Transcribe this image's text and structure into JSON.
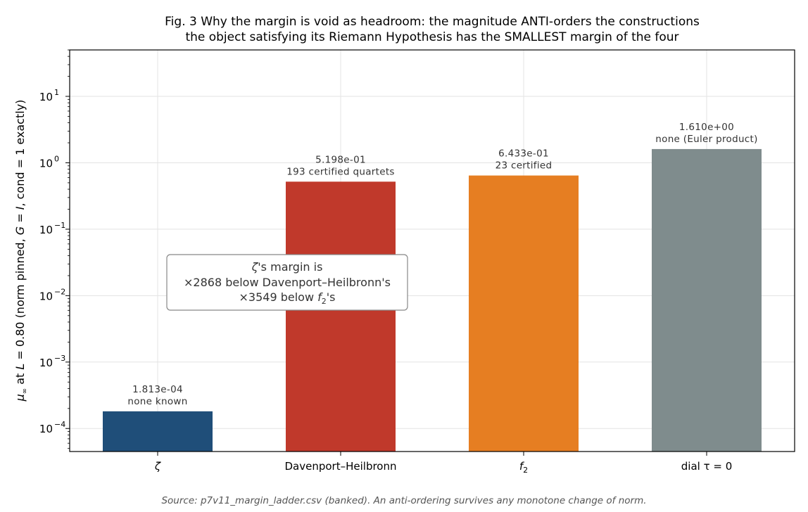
{
  "chart_data": {
    "type": "bar",
    "title_lines": [
      "Fig. 3  Why the margin is void as headroom: the magnitude ANTI-orders the constructions",
      "the object satisfying its Riemann Hypothesis has the SMALLEST margin of the four"
    ],
    "ylabel": "μ∞ at L = 0.80   (norm pinned, G = I, cond = 1 exactly)",
    "yscale": "log",
    "ylim": [
      4.5e-05,
      50
    ],
    "ytick_labels": [
      {
        "value": 0.0001,
        "base": "10",
        "exp": "−4"
      },
      {
        "value": 0.001,
        "base": "10",
        "exp": "−3"
      },
      {
        "value": 0.01,
        "base": "10",
        "exp": "−2"
      },
      {
        "value": 0.1,
        "base": "10",
        "exp": "−1"
      },
      {
        "value": 1,
        "base": "10",
        "exp": "0"
      },
      {
        "value": 10,
        "base": "10",
        "exp": "1"
      }
    ],
    "categories": [
      "ζ",
      "Davenport–Heilbronn",
      "f2",
      "dial τ = 0"
    ],
    "category_labels": [
      {
        "main": "ζ",
        "sub": ""
      },
      {
        "main": "Davenport–Heilbronn",
        "sub": ""
      },
      {
        "main": "f",
        "sub": "2"
      },
      {
        "main": "dial τ = 0",
        "sub": ""
      }
    ],
    "values": [
      0.0001813,
      0.5198,
      0.6433,
      1.61
    ],
    "bar_value_labels": [
      "1.813e-04",
      "5.198e-01",
      "6.433e-01",
      "1.610e+00"
    ],
    "bar_sub_labels": [
      "none known",
      "193 certified quartets",
      "23 certified",
      "none (Euler product)"
    ],
    "colors": [
      "#1f4e79",
      "#c0392b",
      "#e67e22",
      "#7f8c8d"
    ],
    "grid": true,
    "annotation": {
      "line1": "ζ's margin is",
      "line2": "×2868 below Davenport–Heilbronn's",
      "line3_prefix": "×3549 below ",
      "line3_f": "f",
      "line3_sub": "2",
      "line3_suffix": "'s"
    },
    "source": "Source: p7v11_margin_ladder.csv (banked). An anti-ordering survives any monotone change of norm."
  }
}
